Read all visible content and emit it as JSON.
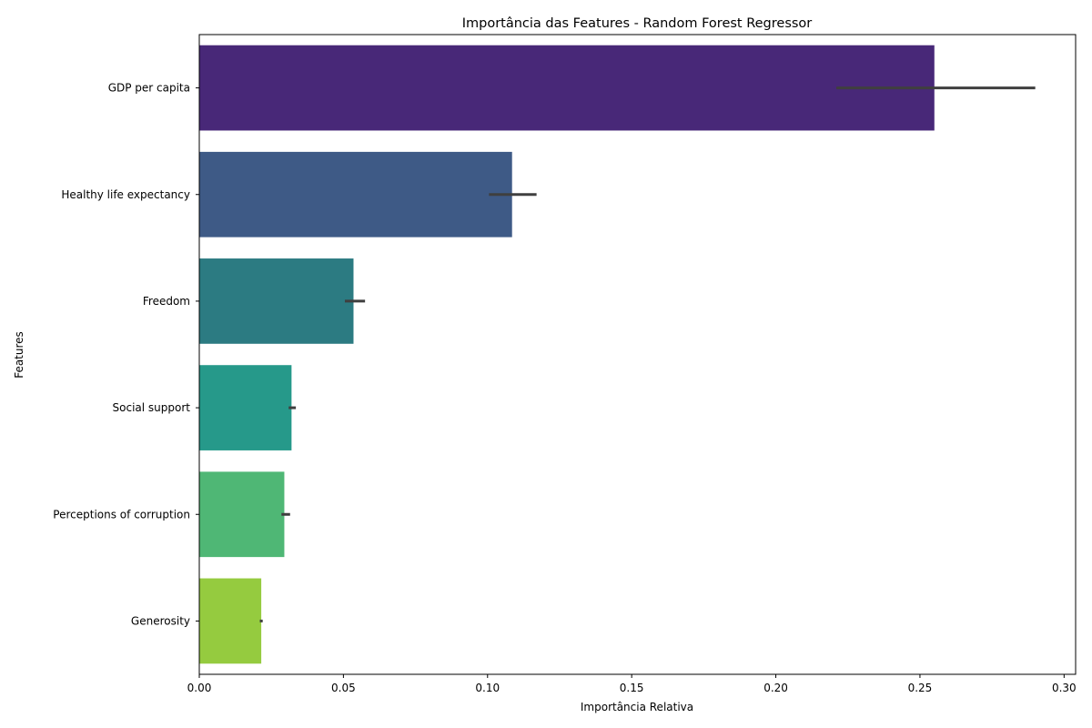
{
  "chart_data": {
    "type": "bar",
    "orientation": "horizontal",
    "title": "Importância das Features - Random Forest Regressor",
    "xlabel": "Importância Relativa",
    "ylabel": "Features",
    "xlim": [
      0,
      0.304
    ],
    "xticks": [
      "0.00",
      "0.05",
      "0.10",
      "0.15",
      "0.20",
      "0.25",
      "0.30"
    ],
    "grid": false,
    "legend": "none",
    "categories": [
      "GDP per capita",
      "Healthy life expectancy",
      "Freedom",
      "Social support",
      "Perceptions of corruption",
      "Generosity"
    ],
    "values": [
      0.255,
      0.1085,
      0.0535,
      0.032,
      0.0295,
      0.0215
    ],
    "error_low": [
      0.221,
      0.1005,
      0.0505,
      0.031,
      0.0285,
      0.021
    ],
    "error_high": [
      0.29,
      0.117,
      0.0575,
      0.0335,
      0.0315,
      0.022
    ],
    "colors": [
      "#482878",
      "#3e5a86",
      "#2c7b82",
      "#26998a",
      "#4fb775",
      "#95cb3f"
    ],
    "error_color": "#3f3f3f"
  }
}
